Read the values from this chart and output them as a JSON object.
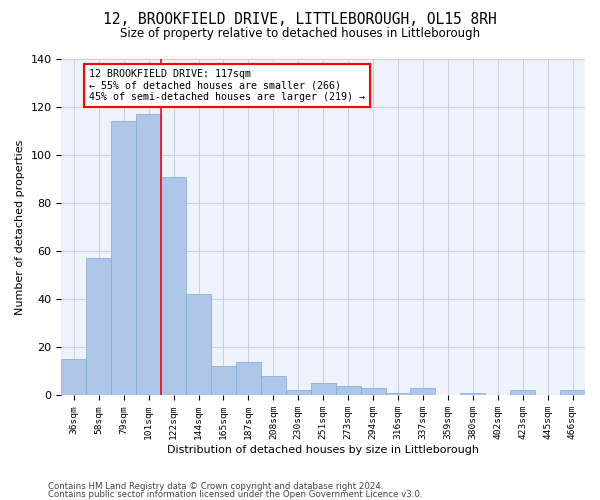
{
  "title": "12, BROOKFIELD DRIVE, LITTLEBOROUGH, OL15 8RH",
  "subtitle": "Size of property relative to detached houses in Littleborough",
  "xlabel": "Distribution of detached houses by size in Littleborough",
  "ylabel": "Number of detached properties",
  "bin_labels": [
    "36sqm",
    "58sqm",
    "79sqm",
    "101sqm",
    "122sqm",
    "144sqm",
    "165sqm",
    "187sqm",
    "208sqm",
    "230sqm",
    "251sqm",
    "273sqm",
    "294sqm",
    "316sqm",
    "337sqm",
    "359sqm",
    "380sqm",
    "402sqm",
    "423sqm",
    "445sqm",
    "466sqm"
  ],
  "bar_heights": [
    15,
    57,
    114,
    117,
    91,
    42,
    12,
    14,
    8,
    2,
    5,
    4,
    3,
    1,
    3,
    0,
    1,
    0,
    2,
    0,
    2
  ],
  "bar_color": "#aec6e8",
  "bar_edge_color": "#7aadd4",
  "vline_color": "red",
  "vline_x_index": 3.5,
  "annotation_text": "12 BROOKFIELD DRIVE: 117sqm\n← 55% of detached houses are smaller (266)\n45% of semi-detached houses are larger (219) →",
  "annotation_box_color": "white",
  "annotation_box_edge_color": "red",
  "ylim": [
    0,
    140
  ],
  "yticks": [
    0,
    20,
    40,
    60,
    80,
    100,
    120,
    140
  ],
  "footer_line1": "Contains HM Land Registry data © Crown copyright and database right 2024.",
  "footer_line2": "Contains public sector information licensed under the Open Government Licence v3.0.",
  "bg_color": "#eef2fa",
  "grid_color": "#c8d0e0"
}
